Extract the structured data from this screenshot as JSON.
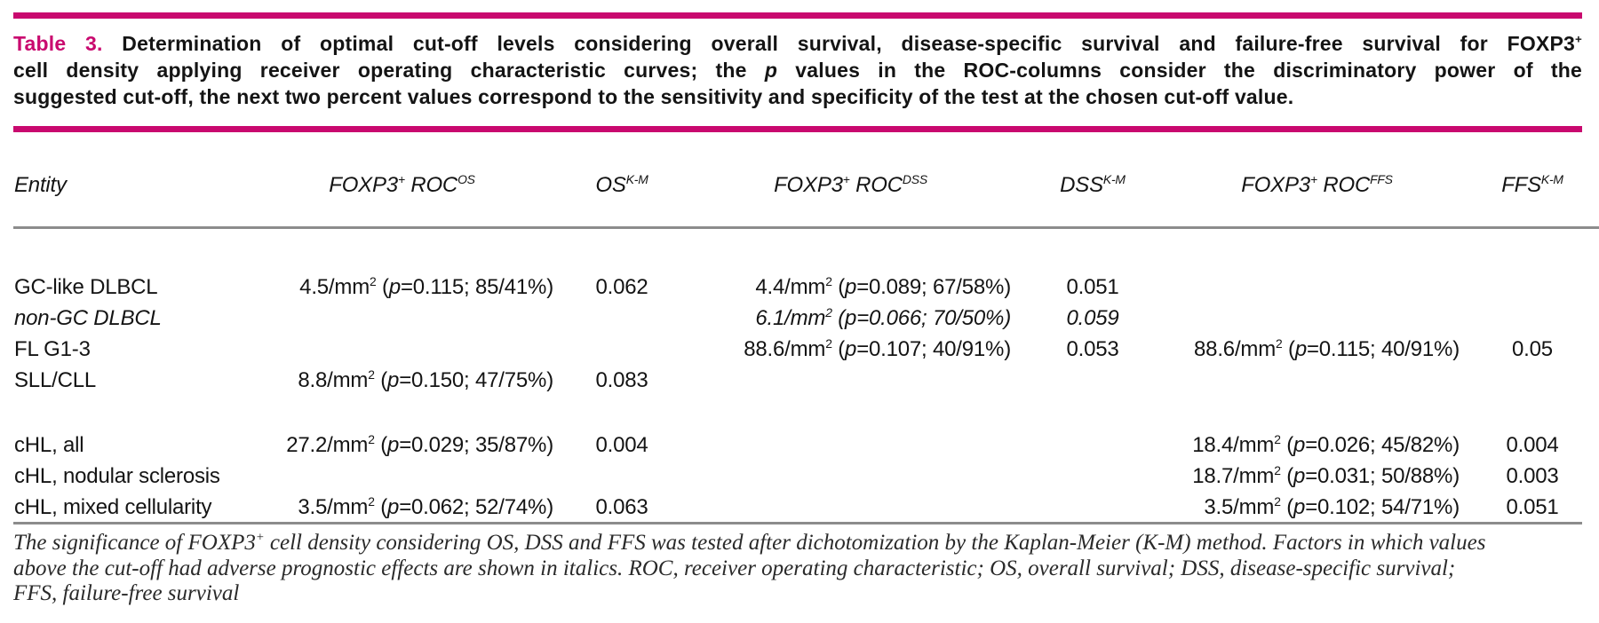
{
  "colors": {
    "accent_magenta": "#c9096f",
    "rule_gray": "#8c8c8c",
    "text": "#141414"
  },
  "caption": {
    "label": "Table 3.",
    "line1_text": " Determination of optimal cut-off levels considering overall survival, disease-specific survival and failure-free survival for FOXP3",
    "line1_sup": "+",
    "line2_pre": "cell density applying receiver operating characteristic curves; the ",
    "line2_p": "p",
    "line2_post": " values in the ROC-columns consider the discriminatory power of the",
    "line3": "suggested cut-off, the next two percent values correspond to the sensitivity and specificity of the test at the chosen cut-off value."
  },
  "header": {
    "entity": "Entity",
    "roc_os": {
      "base1": "FOXP3",
      "sup1": "+",
      "base2": " ROC",
      "sup2": "OS"
    },
    "os_km": {
      "base": "OS",
      "sup": "K-M"
    },
    "roc_dss": {
      "base1": "FOXP3",
      "sup1": "+",
      "base2": " ROC",
      "sup2": "DSS"
    },
    "dss_km": {
      "base": "DSS",
      "sup": "K-M"
    },
    "roc_ffs": {
      "base1": "FOXP3",
      "sup1": "+",
      "base2": " ROC",
      "sup2": "FFS"
    },
    "ffs_km": {
      "base": "FFS",
      "sup": "K-M"
    }
  },
  "rows": [
    {
      "entity": "GC-like DLBCL",
      "roc_os": {
        "num": "4.5/mm",
        "sup": "2",
        "open": " (",
        "p": "p",
        "rest": "=0.115; 85/41%)"
      },
      "os_km": "0.062",
      "roc_dss": {
        "num": "4.4/mm",
        "sup": "2",
        "open": " (",
        "p": "p",
        "rest": "=0.089; 67/58%)"
      },
      "dss_km": "0.051"
    },
    {
      "entity": "non-GC DLBCL",
      "roc_dss": {
        "num": "6.1/mm",
        "sup": "2",
        "open": " (",
        "p": "p",
        "rest": "=0.066; 70/50%)"
      },
      "dss_km": "0.059"
    },
    {
      "entity": "FL G1-3",
      "roc_dss": {
        "num": "88.6/mm",
        "sup": "2",
        "open": " (",
        "p": "p",
        "rest": "=0.107; 40/91%)"
      },
      "dss_km": "0.053",
      "roc_ffs": {
        "num": "88.6/mm",
        "sup": "2",
        "open": " (",
        "p": "p",
        "rest": "=0.115; 40/91%)"
      },
      "ffs_km": "0.05"
    },
    {
      "entity": "SLL/CLL",
      "roc_os": {
        "num": "8.8/mm",
        "sup": "2",
        "open": " (",
        "p": "p",
        "rest": "=0.150; 47/75%)"
      },
      "os_km": "0.083"
    },
    {
      "entity": "cHL, all",
      "roc_os": {
        "num": "27.2/mm",
        "sup": "2",
        "open": " (",
        "p": "p",
        "rest": "=0.029; 35/87%)"
      },
      "os_km": "0.004",
      "roc_ffs": {
        "num": "18.4/mm",
        "sup": "2",
        "open": " (",
        "p": "p",
        "rest": "=0.026; 45/82%)"
      },
      "ffs_km": "0.004"
    },
    {
      "entity": "cHL, nodular sclerosis",
      "roc_ffs": {
        "num": "18.7/mm",
        "sup": "2",
        "open": " (",
        "p": "p",
        "rest": "=0.031; 50/88%)"
      },
      "ffs_km": "0.003"
    },
    {
      "entity": "cHL, mixed cellularity",
      "roc_os": {
        "num": "3.5/mm",
        "sup": "2",
        "open": " (",
        "p": "p",
        "rest": "=0.062; 52/74%)"
      },
      "os_km": "0.063",
      "roc_ffs": {
        "num": "3.5/mm",
        "sup": "2",
        "open": " (",
        "p": "p",
        "rest": "=0.102; 54/71%)"
      },
      "ffs_km": "0.051"
    }
  ],
  "footnote": {
    "line1_pre": "The significance of FOXP3",
    "line1_sup": "+",
    "line1_post": " cell density considering OS, DSS and FFS was tested after dichotomization by the Kaplan-Meier (K-M) method. Factors in which values",
    "line2": "above the cut-off had adverse prognostic effects are shown in italics. ROC, receiver operating characteristic; OS, overall survival; DSS, disease-specific survival;",
    "line3": "FFS, failure-free survival"
  }
}
